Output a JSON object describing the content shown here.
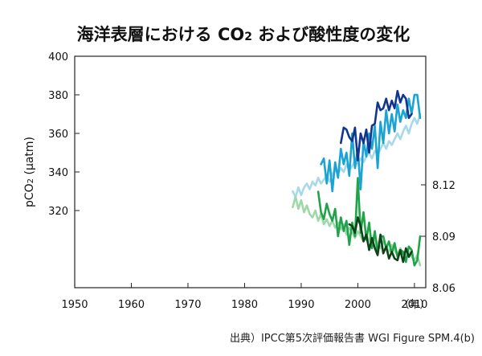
{
  "title": "海洋表層における CO2 および酸性度の変化",
  "title_main": "海洋表層における CO",
  "title_sub": "2",
  "title_tail": " および酸性度の変化",
  "source": "出典）IPCC第5次評価報告書 WGI Figure SPM.4(b)",
  "chart_data": {
    "type": "line",
    "title": "海洋表層における CO2 および酸性度の変化",
    "xlabel": "（年）",
    "x_unit_label": "（年）",
    "xlim": [
      1950,
      2012
    ],
    "xticks": [
      1950,
      1960,
      1970,
      1980,
      1990,
      2000,
      2010
    ],
    "xtick_labels": [
      "1950",
      "1960",
      "1970",
      "1980",
      "1990",
      "2000",
      "2010"
    ],
    "left_axis": {
      "label_pre": "pCO",
      "label_sub": "2",
      "label_post": " (μatm)",
      "ylim": [
        280,
        400
      ],
      "ticks": [
        320,
        340,
        360,
        380,
        400
      ],
      "tick_labels": [
        "320",
        "340",
        "360",
        "380",
        "400"
      ]
    },
    "right_axis": {
      "label": "",
      "ylim": [
        8.06,
        8.195
      ],
      "ticks": [
        8.06,
        8.09,
        8.12
      ],
      "tick_labels": [
        "8.06",
        "8.09",
        "8.12"
      ]
    },
    "series": [
      {
        "axis": "left",
        "color": "#a8d8ec",
        "x": [
          1988.5,
          1989,
          1989.5,
          1990,
          1990.5,
          1991,
          1991.5,
          1992,
          1992.5,
          1993,
          1993.5,
          1994,
          1994.5,
          1995,
          1995.5,
          1996,
          1996.5,
          1997,
          1997.5,
          1998,
          1998.5,
          1999,
          1999.5,
          2000,
          2000.5,
          2001,
          2001.5,
          2002,
          2002.5,
          2003,
          2003.5,
          2004,
          2004.5,
          2005,
          2005.5,
          2006,
          2006.5,
          2007,
          2007.5,
          2008,
          2008.5,
          2009,
          2009.5,
          2010,
          2010.5,
          2011
        ],
        "values": [
          330,
          327,
          332,
          328,
          332,
          334,
          331,
          335,
          333,
          337,
          334,
          336,
          338,
          335,
          339,
          341,
          339,
          342,
          340,
          344,
          341,
          343,
          346,
          344,
          347,
          345,
          348,
          350,
          347,
          351,
          349,
          352,
          355,
          352,
          356,
          354,
          357,
          360,
          357,
          361,
          364,
          360,
          365,
          368,
          365,
          370
        ]
      },
      {
        "axis": "left",
        "color": "#1aa3d4",
        "x": [
          1993.5,
          1994,
          1994.5,
          1995,
          1995.5,
          1996,
          1996.5,
          1997,
          1997.5,
          1998,
          1998.5,
          1999,
          1999.5,
          2000,
          2000.5,
          2001,
          2001.5,
          2002,
          2002.5,
          2003,
          2003.5,
          2004,
          2004.5,
          2005,
          2005.5,
          2006,
          2006.5,
          2007,
          2007.5,
          2008,
          2008.5,
          2009,
          2009.5,
          2010,
          2010.5,
          2011
        ],
        "values": [
          344,
          347,
          334,
          346,
          330,
          345,
          337,
          352,
          344,
          350,
          338,
          360,
          342,
          352,
          331,
          356,
          348,
          360,
          352,
          364,
          342,
          366,
          355,
          372,
          360,
          370,
          361,
          375,
          366,
          372,
          368,
          378,
          370,
          380,
          380,
          368
        ]
      },
      {
        "axis": "left",
        "color": "#12358f",
        "x": [
          1997,
          1997.5,
          1998,
          1998.5,
          1999,
          1999.5,
          2000,
          2000.5,
          2001,
          2001.5,
          2002,
          2002.5,
          2003,
          2003.5,
          2004,
          2004.5,
          2005,
          2005.5,
          2006,
          2006.5,
          2007,
          2007.5,
          2008,
          2008.5,
          2009,
          2009.5
        ],
        "values": [
          355,
          363,
          362,
          358,
          356,
          363,
          346,
          360,
          355,
          362,
          350,
          364,
          365,
          376,
          372,
          373,
          378,
          372,
          377,
          373,
          382,
          376,
          380,
          378,
          368,
          370
        ]
      },
      {
        "axis": "right",
        "color": "#9fd8a8",
        "x": [
          1988.5,
          1989,
          1989.5,
          1990,
          1990.5,
          1991,
          1991.5,
          1992,
          1992.5,
          1993,
          1993.5,
          1994,
          1994.5,
          1995,
          1995.5,
          1996,
          1996.5,
          1997,
          1997.5,
          1998,
          1998.5,
          1999,
          1999.5,
          2000,
          2000.5,
          2001,
          2001.5,
          2002,
          2002.5,
          2003,
          2003.5,
          2004,
          2004.5,
          2005,
          2005.5,
          2006,
          2006.5,
          2007,
          2007.5,
          2008,
          2008.5,
          2009,
          2009.5,
          2010,
          2010.5,
          2011
        ],
        "values": [
          8.107,
          8.113,
          8.106,
          8.111,
          8.104,
          8.108,
          8.103,
          8.101,
          8.105,
          8.099,
          8.103,
          8.097,
          8.1,
          8.096,
          8.099,
          8.095,
          8.098,
          8.094,
          8.097,
          8.091,
          8.095,
          8.092,
          8.089,
          8.093,
          8.09,
          8.087,
          8.091,
          8.088,
          8.085,
          8.089,
          8.086,
          8.083,
          8.087,
          8.084,
          8.081,
          8.085,
          8.082,
          8.079,
          8.083,
          8.08,
          8.077,
          8.081,
          8.078,
          8.076,
          8.079,
          8.073
        ]
      },
      {
        "axis": "right",
        "color": "#21a34a",
        "x": [
          1993,
          1993.5,
          1994,
          1994.5,
          1995,
          1995.5,
          1996,
          1996.5,
          1997,
          1997.5,
          1998,
          1998.5,
          1999,
          1999.5,
          2000,
          2000.5,
          2001,
          2001.5,
          2002,
          2002.5,
          2003,
          2003.5,
          2004,
          2004.5,
          2005,
          2005.5,
          2006,
          2006.5,
          2007,
          2007.5,
          2008,
          2008.5,
          2009,
          2009.5,
          2010,
          2010.5,
          2011
        ],
        "values": [
          8.116,
          8.104,
          8.1,
          8.109,
          8.103,
          8.099,
          8.106,
          8.09,
          8.101,
          8.093,
          8.099,
          8.085,
          8.098,
          8.09,
          8.124,
          8.092,
          8.104,
          8.088,
          8.098,
          8.083,
          8.093,
          8.08,
          8.09,
          8.09,
          8.083,
          8.087,
          8.08,
          8.086,
          8.078,
          8.082,
          8.081,
          8.075,
          8.084,
          8.082,
          8.073,
          8.076,
          8.09
        ]
      },
      {
        "axis": "right",
        "color": "#0c4418",
        "x": [
          1998.5,
          1999,
          1999.5,
          2000,
          2000.5,
          2001,
          2001.5,
          2002,
          2002.5,
          2003,
          2003.5,
          2004,
          2004.5,
          2005,
          2005.5,
          2006,
          2006.5,
          2007,
          2007.5,
          2008,
          2008.5,
          2009,
          2009.5
        ],
        "values": [
          8.097,
          8.096,
          8.092,
          8.101,
          8.096,
          8.087,
          8.091,
          8.082,
          8.089,
          8.083,
          8.079,
          8.091,
          8.08,
          8.084,
          8.077,
          8.081,
          8.077,
          8.076,
          8.082,
          8.075,
          8.083,
          8.078,
          8.081
        ]
      }
    ]
  }
}
